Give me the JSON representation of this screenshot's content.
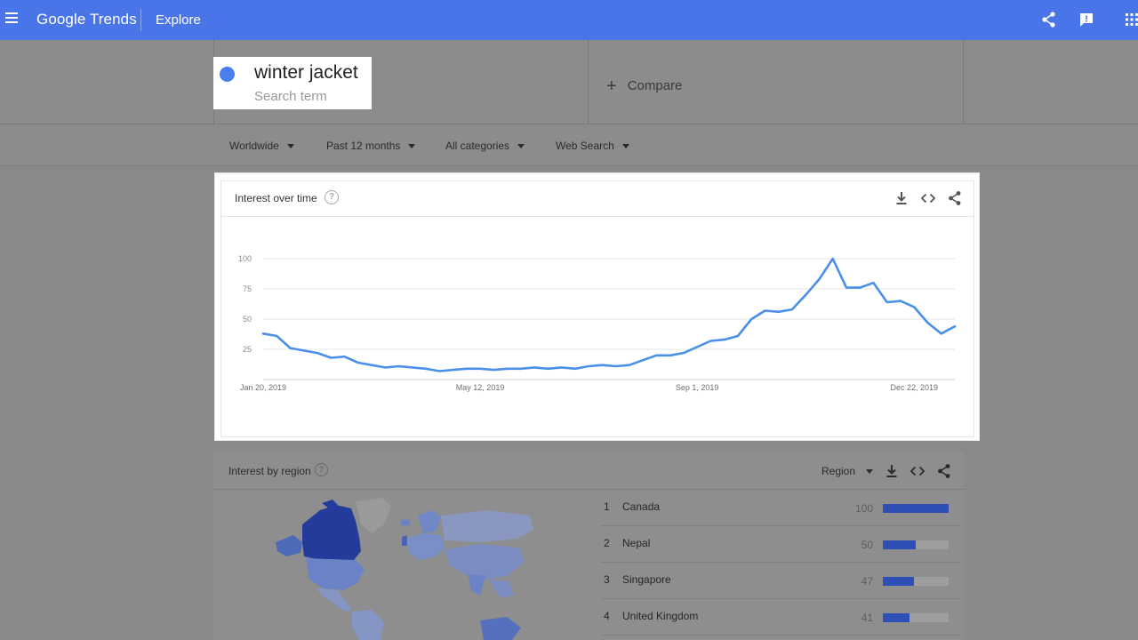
{
  "app": {
    "logo": "Google Trends",
    "page": "Explore"
  },
  "search": {
    "term": "winter jacket",
    "term_caption": "Search term",
    "compare_label": "Compare",
    "term_color": "#4a7df0"
  },
  "filters": [
    {
      "label": "Worldwide"
    },
    {
      "label": "Past 12 months"
    },
    {
      "label": "All categories"
    },
    {
      "label": "Web Search"
    }
  ],
  "interest_over_time": {
    "title": "Interest over time",
    "icons": [
      "download-icon",
      "embed-icon",
      "share-icon"
    ],
    "chart_data": {
      "type": "line",
      "series": [
        {
          "color": "#4a90e8",
          "values": [
            38,
            36,
            26,
            24,
            22,
            18,
            19,
            14,
            12,
            10,
            11,
            10,
            9,
            7,
            8,
            9,
            9,
            8,
            9,
            9,
            10,
            9,
            10,
            9,
            11,
            12,
            11,
            12,
            16,
            20,
            20,
            22,
            27,
            32,
            33,
            36,
            50,
            57,
            56,
            58,
            70,
            83,
            100,
            76,
            76,
            80,
            64,
            65,
            60,
            47,
            38,
            44
          ]
        }
      ],
      "x_tick_labels": [
        "Jan 20, 2019",
        "May 12, 2019",
        "Sep 1, 2019",
        "Dec 22, 2019"
      ],
      "x_tick_indices": [
        0,
        16,
        32,
        48
      ],
      "y_ticks": [
        25,
        50,
        75,
        100
      ],
      "ylim": [
        0,
        100
      ],
      "grid": true,
      "legend": false
    }
  },
  "interest_by_region": {
    "title": "Interest by region",
    "resolution_label": "Region",
    "rows": [
      {
        "rank": "1",
        "name": "Canada",
        "value": 100
      },
      {
        "rank": "2",
        "name": "Nepal",
        "value": 50
      },
      {
        "rank": "3",
        "name": "Singapore",
        "value": 47
      },
      {
        "rank": "4",
        "name": "United Kingdom",
        "value": 41
      }
    ]
  }
}
